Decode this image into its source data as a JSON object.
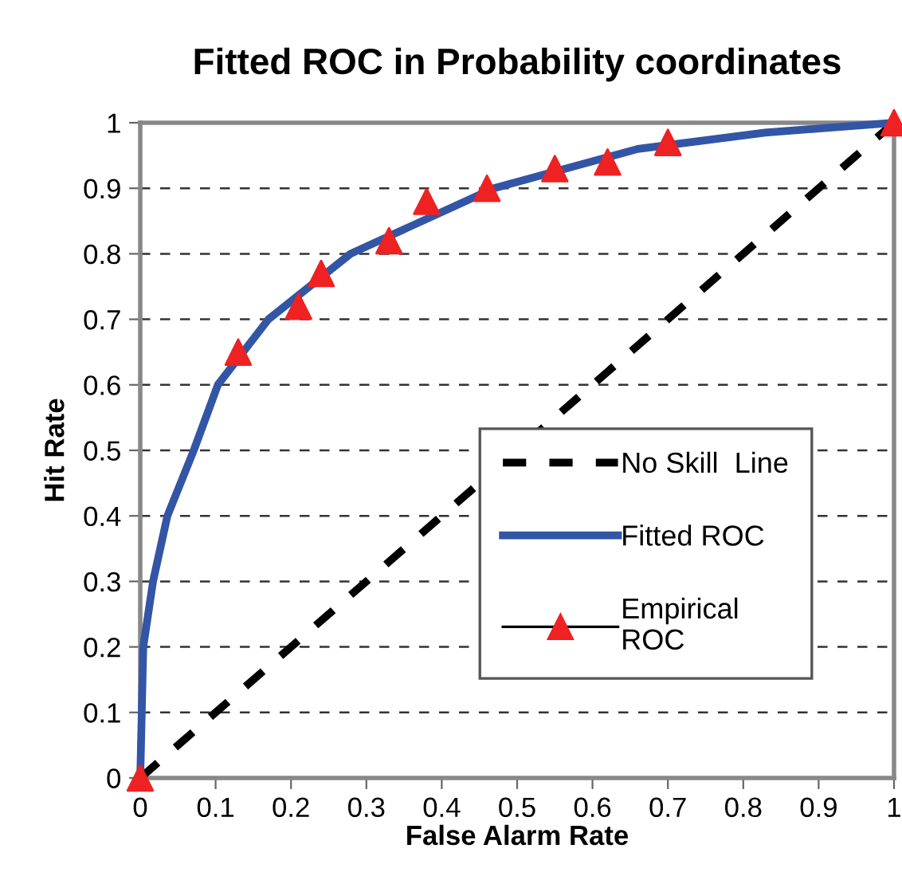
{
  "chart_data": {
    "type": "line",
    "title": "Fitted ROC in Probability coordinates",
    "xlabel": "False Alarm Rate",
    "ylabel": "Hit Rate",
    "xlim": [
      0,
      1
    ],
    "ylim": [
      0,
      1
    ],
    "xticks": [
      0,
      0.1,
      0.2,
      0.3,
      0.4,
      0.5,
      0.6,
      0.7,
      0.8,
      0.9,
      1
    ],
    "yticks": [
      0,
      0.1,
      0.2,
      0.3,
      0.4,
      0.5,
      0.6,
      0.7,
      0.8,
      0.9,
      1
    ],
    "grid": "y",
    "legend": "bottom right",
    "series": [
      {
        "name": "No Skill  Line",
        "color": "#000000",
        "line_style": "dashed",
        "marker": "none",
        "x": [
          0,
          1
        ],
        "values": [
          0,
          1
        ]
      },
      {
        "name": "Fitted ROC",
        "color": "#3355a5",
        "line_style": "solid",
        "marker": "none",
        "x": [
          0,
          0.002,
          0.004,
          0.017,
          0.036,
          0.071,
          0.103,
          0.17,
          0.279,
          0.469,
          0.66,
          0.829,
          1
        ],
        "values": [
          0,
          0.1,
          0.2,
          0.3,
          0.4,
          0.5,
          0.6,
          0.7,
          0.8,
          0.9,
          0.96,
          0.985,
          1
        ]
      },
      {
        "name": "Empirical\nROC",
        "type": "scatter",
        "color": "#ee2222",
        "marker": "triangle",
        "x": [
          0,
          0.13,
          0.21,
          0.24,
          0.33,
          0.38,
          0.46,
          0.55,
          0.62,
          0.7,
          1
        ],
        "values": [
          0,
          0.65,
          0.72,
          0.77,
          0.82,
          0.88,
          0.9,
          0.93,
          0.94,
          0.97,
          1
        ]
      }
    ]
  }
}
